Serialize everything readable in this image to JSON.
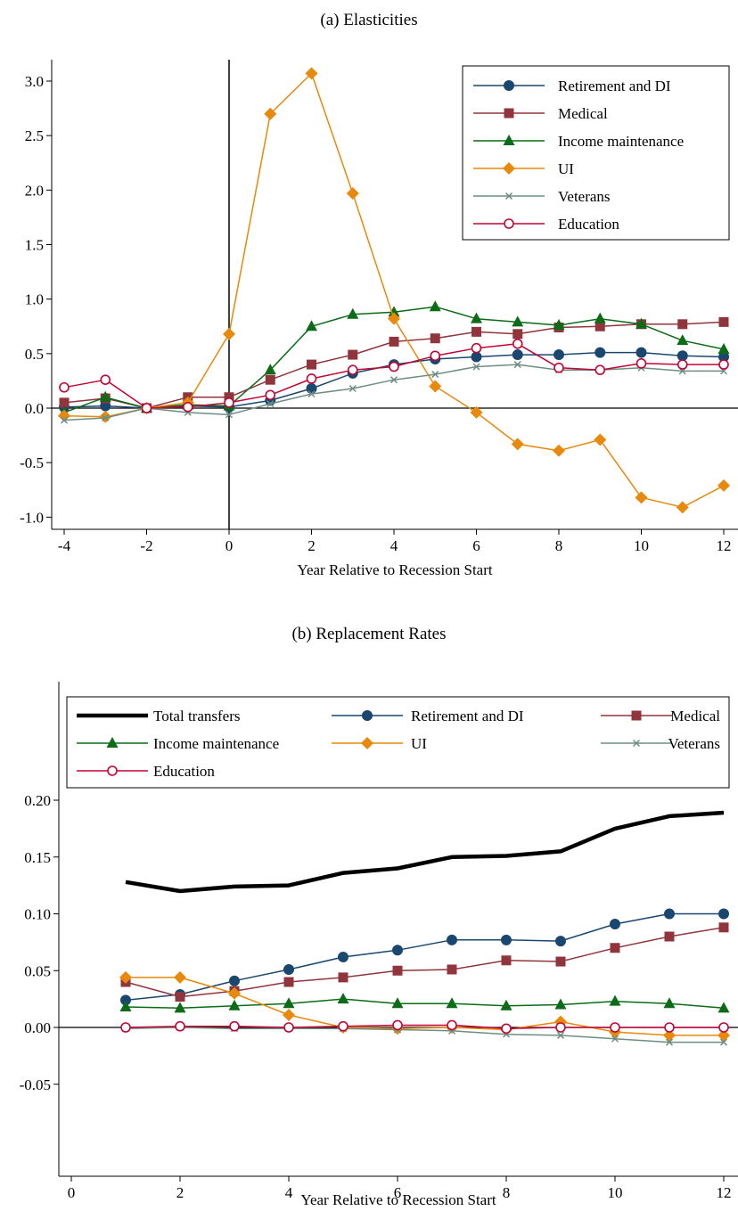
{
  "chart_data": [
    {
      "type": "line",
      "title": "(a) Elasticities",
      "xlabel": "Year Relative to Recession Start",
      "ylabel": "",
      "xlim": [
        -4,
        12
      ],
      "ylim": [
        -1.1,
        3.2
      ],
      "xticks": [
        "-4",
        "-2",
        "0",
        "2",
        "4",
        "6",
        "8",
        "10",
        "12"
      ],
      "yticks": [
        "-1.0",
        "-0.5",
        "0.0",
        "0.5",
        "1.0",
        "1.5",
        "2.0",
        "2.5",
        "3.0"
      ],
      "grid": false,
      "legend": "top-right",
      "x": [
        -4,
        -3,
        -2,
        -1,
        0,
        1,
        2,
        3,
        4,
        5,
        6,
        7,
        8,
        9,
        10,
        11,
        12
      ],
      "series": [
        {
          "name": "Retirement and DI",
          "color": "#1a476f",
          "marker": "circle",
          "values": [
            0.01,
            0.02,
            0.0,
            0.02,
            0.01,
            0.07,
            0.18,
            0.32,
            0.4,
            0.45,
            0.47,
            0.49,
            0.49,
            0.51,
            0.51,
            0.48,
            0.47
          ]
        },
        {
          "name": "Medical",
          "color": "#90353b",
          "marker": "square",
          "values": [
            0.05,
            0.09,
            0.0,
            0.1,
            0.1,
            0.26,
            0.4,
            0.49,
            0.61,
            0.64,
            0.7,
            0.68,
            0.74,
            0.75,
            0.77,
            0.77,
            0.79
          ]
        },
        {
          "name": "Income maintenance",
          "color": "#0b6b16",
          "marker": "triangle",
          "values": [
            -0.04,
            0.1,
            0.0,
            0.03,
            0.02,
            0.35,
            0.75,
            0.86,
            0.88,
            0.93,
            0.82,
            0.79,
            0.76,
            0.82,
            0.77,
            0.62,
            0.54
          ]
        },
        {
          "name": "UI",
          "color": "#e8890c",
          "marker": "diamond",
          "values": [
            -0.07,
            -0.08,
            0.0,
            0.05,
            0.68,
            2.7,
            3.07,
            1.97,
            0.82,
            0.2,
            -0.04,
            -0.33,
            -0.39,
            -0.29,
            -0.82,
            -0.91,
            -0.71
          ]
        },
        {
          "name": "Veterans",
          "color": "#6e8e84",
          "marker": "x",
          "values": [
            -0.11,
            -0.09,
            0.0,
            -0.04,
            -0.06,
            0.04,
            0.13,
            0.18,
            0.26,
            0.31,
            0.38,
            0.4,
            0.35,
            0.35,
            0.37,
            0.34,
            0.34
          ]
        },
        {
          "name": "Education",
          "color": "#c10534",
          "marker": "hollow-circle",
          "values": [
            0.19,
            0.26,
            0.0,
            0.01,
            0.05,
            0.12,
            0.27,
            0.35,
            0.38,
            0.48,
            0.55,
            0.59,
            0.37,
            0.35,
            0.41,
            0.4,
            0.4
          ]
        }
      ],
      "vline_x": 0,
      "hline_y": 0
    },
    {
      "type": "line",
      "title": "(b) Replacement Rates",
      "xlabel": "Year Relative to Recession Start",
      "ylabel": "",
      "xlim": [
        0,
        12
      ],
      "ylim": [
        -0.06,
        0.27
      ],
      "xticks": [
        "0",
        "2",
        "4",
        "6",
        "8",
        "10",
        "12"
      ],
      "yticks": [
        "-0.05",
        "0.00",
        "0.05",
        "0.10",
        "0.15",
        "0.20"
      ],
      "grid": false,
      "legend": "top",
      "x": [
        1,
        2,
        3,
        4,
        5,
        6,
        7,
        8,
        9,
        10,
        11,
        12
      ],
      "series": [
        {
          "name": "Total transfers",
          "color": "#000000",
          "marker": "none",
          "values": [
            0.128,
            0.12,
            0.124,
            0.125,
            0.136,
            0.14,
            0.15,
            0.151,
            0.155,
            0.175,
            0.186,
            0.189
          ]
        },
        {
          "name": "Retirement and DI",
          "color": "#1a476f",
          "marker": "circle",
          "values": [
            0.024,
            0.029,
            0.041,
            0.051,
            0.062,
            0.068,
            0.077,
            0.077,
            0.076,
            0.091,
            0.1,
            0.1
          ]
        },
        {
          "name": "Medical",
          "color": "#90353b",
          "marker": "square",
          "values": [
            0.04,
            0.027,
            0.032,
            0.04,
            0.044,
            0.05,
            0.051,
            0.059,
            0.058,
            0.07,
            0.08,
            0.088
          ]
        },
        {
          "name": "Income maintenance",
          "color": "#0b6b16",
          "marker": "triangle",
          "values": [
            0.018,
            0.017,
            0.019,
            0.021,
            0.025,
            0.021,
            0.021,
            0.019,
            0.02,
            0.023,
            0.021,
            0.017
          ]
        },
        {
          "name": "UI",
          "color": "#e8890c",
          "marker": "diamond",
          "values": [
            0.044,
            0.044,
            0.03,
            0.011,
            0.0,
            -0.001,
            0.0,
            -0.002,
            0.005,
            -0.004,
            -0.007,
            -0.007
          ]
        },
        {
          "name": "Veterans",
          "color": "#6e8e84",
          "marker": "x",
          "values": [
            -0.001,
            0.0,
            -0.001,
            -0.001,
            -0.001,
            -0.002,
            -0.003,
            -0.006,
            -0.007,
            -0.01,
            -0.013,
            -0.013
          ]
        },
        {
          "name": "Education",
          "color": "#c10534",
          "marker": "hollow-circle",
          "values": [
            0.0,
            0.001,
            0.001,
            0.0,
            0.001,
            0.002,
            0.002,
            -0.001,
            0.0,
            0.0,
            0.0,
            0.0
          ]
        }
      ],
      "hline_y": 0
    }
  ]
}
